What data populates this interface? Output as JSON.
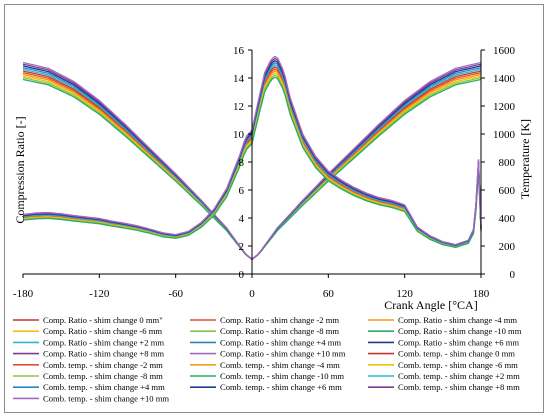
{
  "chart_data": {
    "type": "line",
    "xlabel": "Crank Angle [°CA]",
    "ylabel": "Compression Ratio [-]",
    "y2label": "Temperature [K]",
    "xlim": [
      -180,
      180
    ],
    "ylim": [
      0,
      16
    ],
    "y2lim": [
      0,
      1600
    ],
    "xticks": [
      -180,
      -120,
      -60,
      0,
      60,
      120,
      180
    ],
    "yticks": [
      0,
      2,
      4,
      6,
      8,
      10,
      12,
      14,
      16
    ],
    "y2ticks": [
      0,
      200,
      400,
      600,
      800,
      1000,
      1200,
      1400,
      1600
    ],
    "grid": false,
    "legend_position": "bottom",
    "series": [
      {
        "name": "Comp. Ratio - shim change 0 mm\"",
        "axis": "left",
        "color": "#c0392b",
        "shim": 0
      },
      {
        "name": "Comp. Ratio - shim change -2 mm",
        "axis": "left",
        "color": "#e74c3c",
        "shim": -2
      },
      {
        "name": "Comp. Ratio - shim change -4 mm",
        "axis": "left",
        "color": "#f39c12",
        "shim": -4
      },
      {
        "name": "Comp. Ratio - shim change -6 mm",
        "axis": "left",
        "color": "#f1c40f",
        "shim": -6
      },
      {
        "name": "Comp. Ratio - shim change -8 mm",
        "axis": "left",
        "color": "#8bc34a",
        "shim": -8
      },
      {
        "name": "Comp. Ratio - shim change -10 mm",
        "axis": "left",
        "color": "#27ae60",
        "shim": -10
      },
      {
        "name": "Comp. Ratio - shim change +2 mm",
        "axis": "left",
        "color": "#2eb8cc",
        "shim": 2
      },
      {
        "name": "Comp. Ratio - shim change +4 mm",
        "axis": "left",
        "color": "#2e86c1",
        "shim": 4
      },
      {
        "name": "Comp. Ratio - shim change +6 mm",
        "axis": "left",
        "color": "#1f3a93",
        "shim": 6
      },
      {
        "name": "Comp. Ratio - shim change +8 mm",
        "axis": "left",
        "color": "#7d3c98",
        "shim": 8
      },
      {
        "name": "Comp. Ratio - shim change +10 mm",
        "axis": "left",
        "color": "#a569bd",
        "shim": 10
      },
      {
        "name": "Comb. temp. - shim change 0 mm",
        "axis": "right",
        "color": "#c0392b",
        "shim": 0
      },
      {
        "name": "Comb. temp. - shim change -2 mm",
        "axis": "right",
        "color": "#e74c3c",
        "shim": -2
      },
      {
        "name": "Comb. temp. - shim change -4 mm",
        "axis": "right",
        "color": "#f39c12",
        "shim": -4
      },
      {
        "name": "Comb. temp. - shim change -6 mm",
        "axis": "right",
        "color": "#f1c40f",
        "shim": -6
      },
      {
        "name": "Comb. temp. - shim change -8 mm",
        "axis": "right",
        "color": "#8bc34a",
        "shim": -8
      },
      {
        "name": "Comb. temp. - shim change -10 mm",
        "axis": "right",
        "color": "#27ae60",
        "shim": -10
      },
      {
        "name": "Comb. temp. - shim change +2 mm",
        "axis": "right",
        "color": "#2eb8cc",
        "shim": 2
      },
      {
        "name": "Comb. temp. - shim change +4 mm",
        "axis": "right",
        "color": "#2e86c1",
        "shim": 4
      },
      {
        "name": "Comb. temp. - shim change +6 mm",
        "axis": "right",
        "color": "#1f3a93",
        "shim": 6
      },
      {
        "name": "Comb. temp. - shim change +8 mm",
        "axis": "right",
        "color": "#7d3c98",
        "shim": 8
      },
      {
        "name": "Comb. temp. - shim change +10 mm",
        "axis": "right",
        "color": "#a569bd",
        "shim": 10
      }
    ],
    "compression_ratio_curve": {
      "x": [
        -180,
        -160,
        -140,
        -120,
        -100,
        -80,
        -60,
        -40,
        -20,
        -10,
        -5,
        0,
        5,
        10,
        20,
        40,
        60,
        80,
        100,
        120,
        140,
        160,
        180
      ],
      "values_shim_0": [
        14.5,
        14.1,
        13.2,
        11.9,
        10.3,
        8.6,
        6.9,
        5.1,
        3.2,
        2.0,
        1.4,
        1.05,
        1.4,
        2.0,
        3.2,
        5.1,
        6.9,
        8.6,
        10.3,
        11.9,
        13.2,
        14.1,
        14.5
      ],
      "peak_range": [
        13.6,
        15.1
      ]
    },
    "temperature_curve": {
      "x": [
        -180,
        -170,
        -160,
        -150,
        -140,
        -130,
        -120,
        -110,
        -100,
        -90,
        -80,
        -70,
        -60,
        -50,
        -40,
        -30,
        -20,
        -10,
        -5,
        0,
        5,
        10,
        15,
        18,
        20,
        25,
        30,
        40,
        50,
        60,
        70,
        80,
        90,
        100,
        110,
        120,
        130,
        140,
        150,
        160,
        170,
        175,
        178,
        180
      ],
      "values_shim_0": [
        405,
        415,
        418,
        410,
        398,
        388,
        378,
        360,
        345,
        328,
        305,
        280,
        268,
        290,
        350,
        440,
        580,
        800,
        930,
        980,
        1180,
        1370,
        1460,
        1480,
        1470,
        1380,
        1200,
        950,
        800,
        700,
        640,
        590,
        550,
        520,
        500,
        470,
        320,
        260,
        220,
        200,
        230,
        320,
        780,
        320
      ],
      "spread_at_180": [
        370,
        430
      ]
    }
  }
}
